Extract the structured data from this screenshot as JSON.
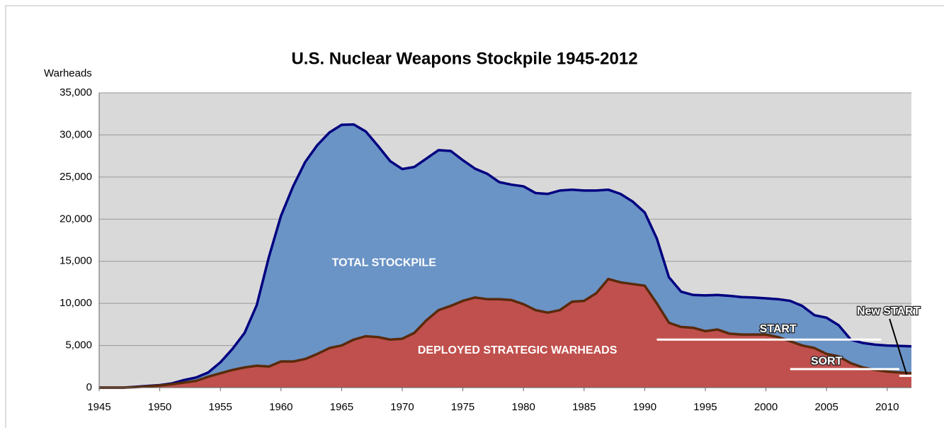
{
  "chart_data": {
    "type": "area",
    "title": "U.S. Nuclear Weapons Stockpile 1945-2012",
    "y_label": "Warheads",
    "x": [
      1945,
      1946,
      1947,
      1948,
      1949,
      1950,
      1951,
      1952,
      1953,
      1954,
      1955,
      1956,
      1957,
      1958,
      1959,
      1960,
      1961,
      1962,
      1963,
      1964,
      1965,
      1966,
      1967,
      1968,
      1969,
      1970,
      1971,
      1972,
      1973,
      1974,
      1975,
      1976,
      1977,
      1978,
      1979,
      1980,
      1981,
      1982,
      1983,
      1984,
      1985,
      1986,
      1987,
      1988,
      1989,
      1990,
      1991,
      1992,
      1993,
      1994,
      1995,
      1996,
      1997,
      1998,
      1999,
      2000,
      2001,
      2002,
      2003,
      2004,
      2005,
      2006,
      2007,
      2008,
      2009,
      2010,
      2011,
      2012
    ],
    "series": [
      {
        "name": "TOTAL STOCKPILE",
        "color": "#6a93c6",
        "line_color": "#000080",
        "values": [
          0,
          0,
          0,
          100,
          200,
          300,
          500,
          900,
          1200,
          1800,
          3000,
          4600,
          6500,
          9800,
          15500,
          20400,
          23900,
          26800,
          28800,
          30300,
          31200,
          31250,
          30400,
          28700,
          26900,
          25950,
          26200,
          27200,
          28200,
          28100,
          27000,
          26000,
          25400,
          24400,
          24100,
          23900,
          23100,
          23000,
          23400,
          23500,
          23400,
          23400,
          23500,
          23000,
          22100,
          20800,
          17700,
          13100,
          11400,
          11000,
          10950,
          11000,
          10900,
          10750,
          10700,
          10600,
          10500,
          10300,
          9700,
          8600,
          8300,
          7400,
          5700,
          5300,
          5100,
          5000,
          4950,
          4900
        ]
      },
      {
        "name": "DEPLOYED STRATEGIC WARHEADS",
        "color": "#c0504d",
        "line_color": "#5a2a0a",
        "values": [
          0,
          0,
          0,
          50,
          150,
          250,
          400,
          600,
          800,
          1300,
          1700,
          2100,
          2400,
          2600,
          2500,
          3100,
          3100,
          3400,
          4000,
          4700,
          5000,
          5700,
          6100,
          6000,
          5700,
          5800,
          6500,
          8000,
          9200,
          9700,
          10300,
          10700,
          10500,
          10500,
          10400,
          9900,
          9200,
          8900,
          9200,
          10200,
          10300,
          11200,
          12900,
          12500,
          12300,
          12100,
          10000,
          7700,
          7200,
          7100,
          6700,
          6900,
          6400,
          6300,
          6300,
          6300,
          6000,
          5500,
          5000,
          4700,
          4000,
          3700,
          2900,
          2400,
          2100,
          1900,
          1800,
          1700
        ]
      }
    ],
    "reference_lines": [
      {
        "label": "START",
        "value": 5700,
        "x": [
          1991,
          2009.5
        ]
      },
      {
        "label": "SORT",
        "value": 2200,
        "x": [
          2002,
          2011
        ]
      },
      {
        "label": "New START",
        "value": 1400,
        "x": [
          2011,
          2012
        ]
      }
    ],
    "xlim": [
      1945,
      2012
    ],
    "xticks": [
      1945,
      1950,
      1955,
      1960,
      1965,
      1970,
      1975,
      1980,
      1985,
      1990,
      1995,
      2000,
      2005,
      2010
    ],
    "ylim": [
      0,
      35000
    ],
    "yticks": [
      0,
      {
        "value": 5000,
        "label": "5,000"
      },
      {
        "value": 10000,
        "label": "10,000"
      },
      {
        "value": 15000,
        "label": "15,000"
      },
      {
        "value": 20000,
        "label": "20,000"
      },
      {
        "value": 25000,
        "label": "25,000"
      },
      {
        "value": 30000,
        "label": "30,000"
      },
      {
        "value": 35000,
        "label": "35,000"
      }
    ],
    "grid": true
  }
}
